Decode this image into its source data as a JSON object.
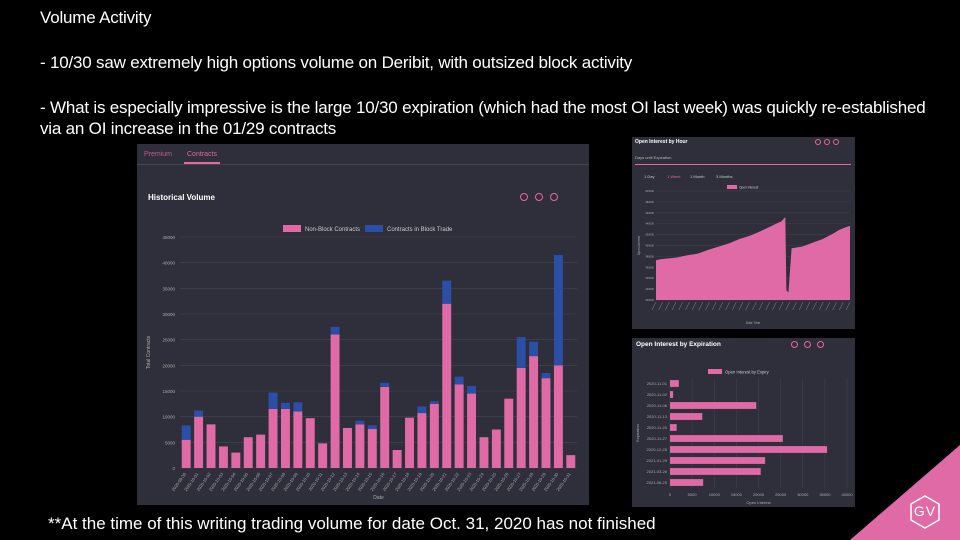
{
  "slide": {
    "title": "Volume Activity",
    "bullet1": "- 10/30 saw extremely high options volume on Deribit, with outsized block activity",
    "bullet2": "- What is especially impressive is the large 10/30 expiration (which had the most OI last week) was quickly re-established via an OI increase in the 01/29 contracts",
    "footnote": "**At the time of this writing trading volume for date Oct. 31, 2020 has not finished"
  },
  "main_panel": {
    "tabs": [
      "Premium",
      "Contracts"
    ],
    "active_tab": "Contracts",
    "chart_title": "Historical Volume",
    "icons": [
      "zoom-in-icon",
      "zoom-out-icon",
      "download-icon"
    ]
  },
  "oi_hour_panel": {
    "title": "Open Interest by Hour",
    "field_label": "Days until Expiration",
    "ranges": [
      "1 Day",
      "1 Week",
      "1 Month",
      "3 Months"
    ],
    "active_range": "1 Week"
  },
  "oi_exp_panel": {
    "title": "Open Interest by Expiration"
  },
  "colors": {
    "pink": "#e06aa6",
    "blue": "#2b4fa6",
    "panel": "#2e2f3b",
    "grid": "#45464f"
  },
  "chart_data": [
    {
      "type": "bar",
      "stacked": true,
      "title": "Historical Volume",
      "xlabel": "Date",
      "ylabel": "Total Contracts",
      "ylim": [
        0,
        45000
      ],
      "yticks": [
        0,
        5000,
        10000,
        15000,
        20000,
        25000,
        30000,
        35000,
        40000,
        45000
      ],
      "legend_position": "top",
      "categories": [
        "2020-09-30",
        "2020-10-01",
        "2020-10-02",
        "2020-10-03",
        "2020-10-04",
        "2020-10-05",
        "2020-10-06",
        "2020-10-07",
        "2020-10-08",
        "2020-10-09",
        "2020-10-10",
        "2020-10-11",
        "2020-10-12",
        "2020-10-13",
        "2020-10-14",
        "2020-10-15",
        "2020-10-16",
        "2020-10-17",
        "2020-10-18",
        "2020-10-19",
        "2020-10-20",
        "2020-10-21",
        "2020-10-22",
        "2020-10-23",
        "2020-10-24",
        "2020-10-25",
        "2020-10-26",
        "2020-10-27",
        "2020-10-28",
        "2020-10-29",
        "2020-10-30",
        "2020-10-31"
      ],
      "series": [
        {
          "name": "Non-Block Contracts",
          "color": "#e06aa6",
          "values": [
            5500,
            10000,
            8500,
            4200,
            3000,
            6000,
            6500,
            11500,
            11500,
            11000,
            9700,
            4800,
            26000,
            7800,
            8500,
            7600,
            15800,
            3500,
            9800,
            10700,
            12500,
            32000,
            16300,
            14500,
            6000,
            7500,
            13500,
            19500,
            21800,
            17500,
            20000,
            2500
          ]
        },
        {
          "name": "Contracts in Block Trade",
          "color": "#2b4fa6",
          "values": [
            2800,
            1200,
            0,
            0,
            0,
            0,
            0,
            3200,
            1200,
            1800,
            0,
            0,
            1500,
            0,
            700,
            700,
            800,
            0,
            0,
            1300,
            500,
            4500,
            1500,
            1500,
            0,
            0,
            0,
            6000,
            2800,
            1000,
            21500,
            0
          ]
        }
      ]
    },
    {
      "type": "area",
      "title": "Open Interest by Hour",
      "xlabel": "Date Time",
      "ylabel": "Open Interest",
      "ylim": [
        300000,
        500000
      ],
      "yticks": [
        300000,
        320000,
        340000,
        360000,
        380000,
        400000,
        420000,
        440000,
        460000,
        480000,
        500000
      ],
      "series": [
        {
          "name": "Open Interest",
          "color": "#e06aa6",
          "points": [
            [
              0,
              373000
            ],
            [
              5,
              375000
            ],
            [
              10,
              376000
            ],
            [
              20,
              378000
            ],
            [
              30,
              382000
            ],
            [
              40,
              385000
            ],
            [
              50,
              392000
            ],
            [
              60,
              398000
            ],
            [
              70,
              404000
            ],
            [
              80,
              412000
            ],
            [
              90,
              418000
            ],
            [
              100,
              426000
            ],
            [
              110,
              435000
            ],
            [
              115,
              440000
            ],
            [
              120,
              444000
            ],
            [
              124,
              452000
            ],
            [
              125,
              318000
            ],
            [
              127,
              314000
            ],
            [
              130,
              395000
            ],
            [
              140,
              398000
            ],
            [
              150,
              405000
            ],
            [
              160,
              412000
            ],
            [
              170,
              422000
            ],
            [
              175,
              428000
            ],
            [
              180,
              432000
            ],
            [
              186,
              436000
            ]
          ]
        }
      ]
    },
    {
      "type": "bar",
      "orientation": "horizontal",
      "title": "Open Interest by Expiration",
      "xlabel": "Open Interest",
      "ylabel": "Expiration",
      "xlim": [
        0,
        40000
      ],
      "xticks": [
        0,
        5000,
        10000,
        15000,
        20000,
        25000,
        30000,
        35000,
        40000
      ],
      "categories": [
        "2020-11-01",
        "2020-11-02",
        "2020-11-06",
        "2020-11-13",
        "2020-11-20",
        "2020-11-27",
        "2020-12-25",
        "2021-01-29",
        "2021-03-26",
        "2021-06-25"
      ],
      "series": [
        {
          "name": "Open Interest by Expiry",
          "color": "#e06aa6",
          "values": [
            2000,
            700,
            19500,
            7300,
            1500,
            25500,
            35500,
            21500,
            20500,
            7500
          ]
        }
      ]
    }
  ]
}
